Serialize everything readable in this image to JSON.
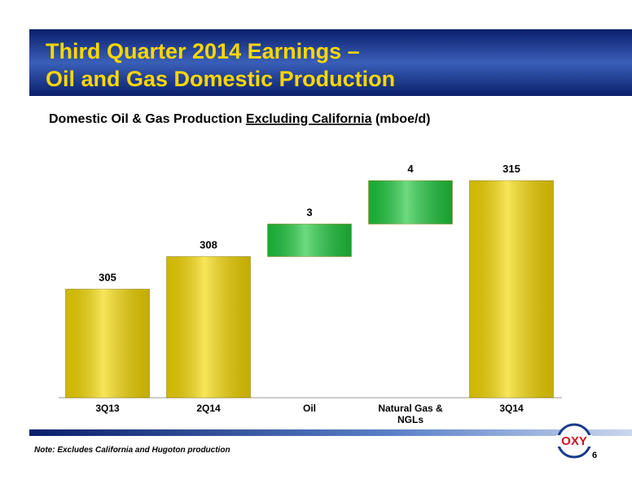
{
  "header": {
    "title_lines": [
      "Third Quarter 2014 Earnings –",
      "Oil and Gas Domestic Production"
    ]
  },
  "chart_data": {
    "type": "waterfall",
    "subtitle_parts": [
      "Domestic Oil & Gas Production ",
      "Excluding California",
      " (mboe/d)"
    ],
    "categories": [
      "3Q13",
      "2Q14",
      "Oil",
      "Natural Gas & NGLs",
      "3Q14"
    ],
    "values": [
      305,
      308,
      3,
      4,
      315
    ],
    "totals": [
      true,
      true,
      false,
      false,
      true
    ],
    "colors": [
      "#f5d800",
      "#f5d800",
      "#1ec83c",
      "#1ec83c",
      "#f5d800"
    ],
    "ylim": [
      295,
      318
    ]
  },
  "footer": {
    "note": "Note:  Excludes California and Hugoton production",
    "page_number": "6",
    "logo": "OXY"
  }
}
